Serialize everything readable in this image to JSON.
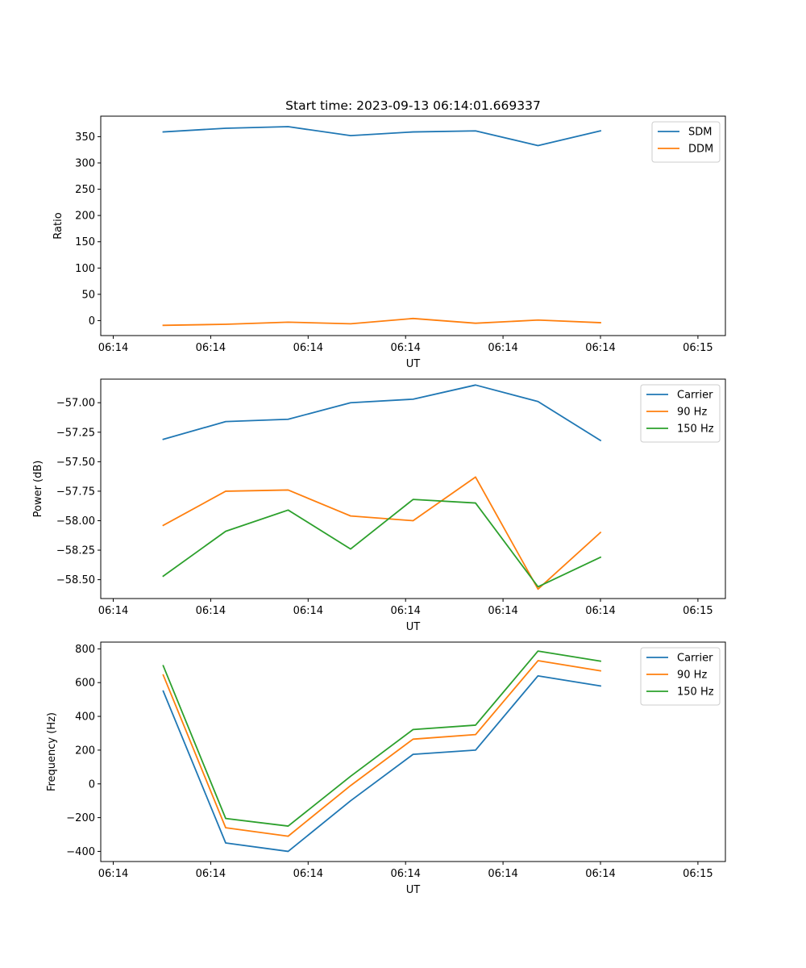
{
  "figure": {
    "title": "Start time: 2023-09-13 06:14:01.669337"
  },
  "colors": {
    "blue": "#1f77b4",
    "orange": "#ff7f0e",
    "green": "#2ca02c"
  },
  "chart_data": [
    {
      "id": "ratio-chart",
      "type": "line",
      "title": "Start time: 2023-09-13 06:14:01.669337",
      "xlabel": "UT",
      "ylabel": "Ratio",
      "x": [
        1,
        2,
        3,
        4,
        5,
        6,
        7,
        8
      ],
      "xlim": [
        0,
        10
      ],
      "xticks": [
        0.2,
        1.76,
        3.32,
        4.88,
        6.44,
        8,
        9.56
      ],
      "xtick_labels": [
        "06:14",
        "06:14",
        "06:14",
        "06:14",
        "06:14",
        "06:14",
        "06:15"
      ],
      "ylim": [
        -28.5,
        389
      ],
      "yticks": [
        0,
        50,
        100,
        150,
        200,
        250,
        300,
        350
      ],
      "ytick_labels": [
        "0",
        "50",
        "100",
        "150",
        "200",
        "250",
        "300",
        "350"
      ],
      "legend": "top-right",
      "series": [
        {
          "name": "SDM",
          "color": "#1f77b4",
          "values": [
            359,
            366,
            369,
            352,
            359,
            361,
            333,
            361
          ]
        },
        {
          "name": "DDM",
          "color": "#ff7f0e",
          "values": [
            -9,
            -7,
            -3,
            -6,
            4,
            -5,
            1,
            -4
          ]
        }
      ]
    },
    {
      "id": "power-chart",
      "type": "line",
      "title": "",
      "xlabel": "UT",
      "ylabel": "Power (dB)",
      "x": [
        1,
        2,
        3,
        4,
        5,
        6,
        7,
        8
      ],
      "xlim": [
        0,
        10
      ],
      "xticks": [
        0.2,
        1.76,
        3.32,
        4.88,
        6.44,
        8,
        9.56
      ],
      "xtick_labels": [
        "06:14",
        "06:14",
        "06:14",
        "06:14",
        "06:14",
        "06:14",
        "06:15"
      ],
      "ylim": [
        -58.66,
        -56.8
      ],
      "yticks": [
        -58.5,
        -58.25,
        -58.0,
        -57.75,
        -57.5,
        -57.25,
        -57.0
      ],
      "ytick_labels": [
        "−58.50",
        "−58.25",
        "−58.00",
        "−57.75",
        "−57.50",
        "−57.25",
        "−57.00"
      ],
      "legend": "top-right",
      "series": [
        {
          "name": "Carrier",
          "color": "#1f77b4",
          "values": [
            -57.31,
            -57.16,
            -57.14,
            -57.0,
            -56.97,
            -56.85,
            -56.99,
            -57.32
          ]
        },
        {
          "name": "90 Hz",
          "color": "#ff7f0e",
          "values": [
            -58.04,
            -57.75,
            -57.74,
            -57.96,
            -58.0,
            -57.63,
            -58.58,
            -58.1
          ]
        },
        {
          "name": "150 Hz",
          "color": "#2ca02c",
          "values": [
            -58.47,
            -58.09,
            -57.91,
            -58.24,
            -57.82,
            -57.85,
            -58.56,
            -58.31
          ]
        }
      ]
    },
    {
      "id": "frequency-chart",
      "type": "line",
      "title": "",
      "xlabel": "UT",
      "ylabel": "Frequency (Hz)",
      "x": [
        1,
        2,
        3,
        4,
        5,
        6,
        7,
        8
      ],
      "xlim": [
        0,
        10
      ],
      "xticks": [
        0.2,
        1.76,
        3.32,
        4.88,
        6.44,
        8,
        9.56
      ],
      "xtick_labels": [
        "06:14",
        "06:14",
        "06:14",
        "06:14",
        "06:14",
        "06:14",
        "06:15"
      ],
      "ylim": [
        -460,
        840
      ],
      "yticks": [
        -400,
        -200,
        0,
        200,
        400,
        600,
        800
      ],
      "ytick_labels": [
        "−400",
        "−200",
        "0",
        "200",
        "400",
        "600",
        "800"
      ],
      "legend": "top-right",
      "series": [
        {
          "name": "Carrier",
          "color": "#1f77b4",
          "values": [
            550,
            -350,
            -400,
            -100,
            175,
            200,
            640,
            580
          ]
        },
        {
          "name": "90 Hz",
          "color": "#ff7f0e",
          "values": [
            645,
            -260,
            -310,
            -10,
            265,
            292,
            730,
            670
          ]
        },
        {
          "name": "150 Hz",
          "color": "#2ca02c",
          "values": [
            700,
            -205,
            -250,
            45,
            322,
            348,
            787,
            727
          ]
        }
      ]
    }
  ]
}
